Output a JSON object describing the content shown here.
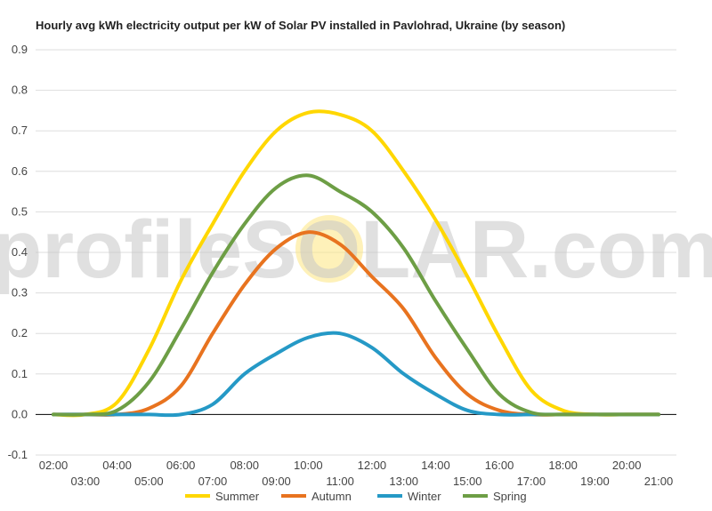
{
  "watermark": {
    "text": "profileSOLAR.com",
    "sun_color": "#FDE680"
  },
  "chart_data": {
    "type": "line",
    "title": "Hourly avg kWh electricity output per kW of Solar PV installed in Pavlohrad, Ukraine (by season)",
    "xlabel": "",
    "ylabel": "",
    "ylim": [
      -0.1,
      0.9
    ],
    "yticks": [
      "-0.1",
      "0.0",
      "0.1",
      "0.2",
      "0.3",
      "0.4",
      "0.5",
      "0.6",
      "0.7",
      "0.8",
      "0.9"
    ],
    "grid": true,
    "legend_position": "bottom",
    "x": [
      "02:00",
      "03:00",
      "04:00",
      "05:00",
      "06:00",
      "07:00",
      "08:00",
      "09:00",
      "10:00",
      "11:00",
      "12:00",
      "13:00",
      "14:00",
      "15:00",
      "16:00",
      "17:00",
      "18:00",
      "19:00",
      "20:00",
      "21:00"
    ],
    "series": [
      {
        "name": "Summer",
        "color": "#FFD700",
        "values": [
          0.0,
          0.0,
          0.03,
          0.16,
          0.33,
          0.47,
          0.6,
          0.7,
          0.745,
          0.74,
          0.7,
          0.6,
          0.48,
          0.34,
          0.19,
          0.06,
          0.01,
          0.0,
          0.0,
          0.0
        ]
      },
      {
        "name": "Autumn",
        "color": "#E8731F",
        "values": [
          0.0,
          0.0,
          0.0,
          0.015,
          0.07,
          0.2,
          0.32,
          0.41,
          0.45,
          0.42,
          0.34,
          0.26,
          0.14,
          0.05,
          0.01,
          0.0,
          0.0,
          0.0,
          0.0,
          0.0
        ]
      },
      {
        "name": "Winter",
        "color": "#2599C6",
        "values": [
          0.0,
          0.0,
          0.0,
          0.0,
          0.0,
          0.025,
          0.1,
          0.15,
          0.19,
          0.2,
          0.165,
          0.1,
          0.05,
          0.01,
          0.0,
          0.0,
          0.0,
          0.0,
          0.0,
          0.0
        ]
      },
      {
        "name": "Spring",
        "color": "#6D9E45",
        "values": [
          0.0,
          0.0,
          0.01,
          0.08,
          0.21,
          0.35,
          0.47,
          0.56,
          0.59,
          0.55,
          0.5,
          0.41,
          0.28,
          0.16,
          0.05,
          0.005,
          0.0,
          0.0,
          0.0,
          0.0
        ]
      }
    ]
  }
}
